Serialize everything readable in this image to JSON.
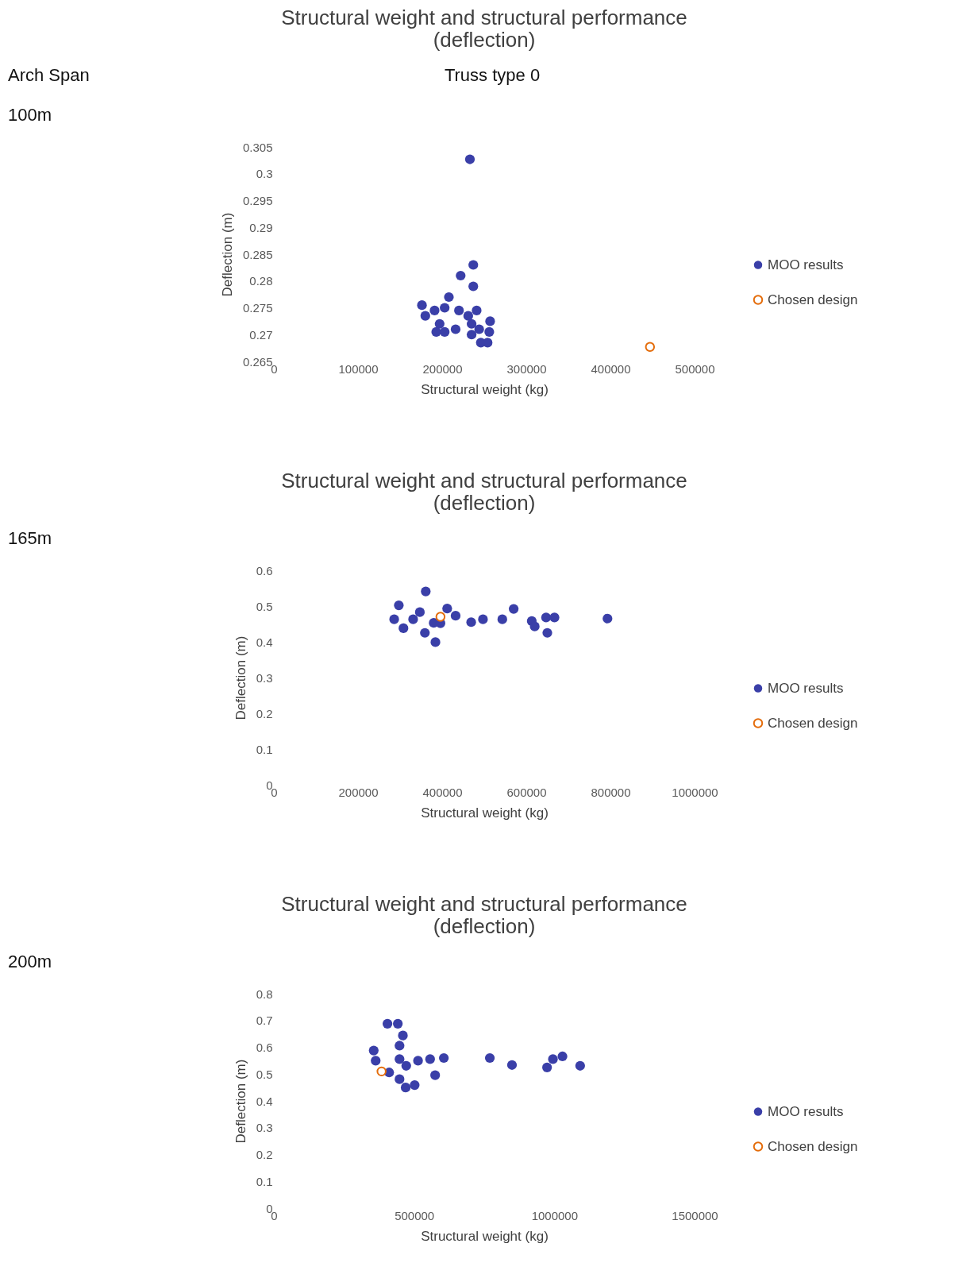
{
  "chart_data": [
    {
      "type": "scatter",
      "title": [
        "Structural weight and structural performance",
        "(deflection)"
      ],
      "xlabel": "Structural weight (kg)",
      "ylabel": "Deflection (m)",
      "annotations": [
        "Arch Span",
        "Truss type 0",
        "100m"
      ],
      "xlim": [
        0,
        500000
      ],
      "xticks": [
        0,
        100000,
        200000,
        300000,
        400000,
        500000
      ],
      "ylim": [
        0.265,
        0.305
      ],
      "yticks": [
        0.265,
        0.27,
        0.275,
        0.28,
        0.285,
        0.29,
        0.295,
        0.3,
        0.305
      ],
      "grid": false,
      "legend": "right",
      "marker": "circle",
      "series": [
        {
          "name": "MOO results",
          "color": "#3a3fa8",
          "x": [
            233000,
            237000,
            222000,
            237000,
            176000,
            180000,
            191000,
            208000,
            203000,
            197000,
            193000,
            203000,
            216000,
            220000,
            235000,
            241000,
            235000,
            246000,
            254000,
            256000,
            257000,
            231000,
            244000
          ],
          "values": [
            0.3027,
            0.283,
            0.281,
            0.279,
            0.2755,
            0.2735,
            0.2745,
            0.277,
            0.275,
            0.272,
            0.2705,
            0.2705,
            0.271,
            0.2745,
            0.272,
            0.2745,
            0.27,
            0.2685,
            0.2685,
            0.2705,
            0.2725,
            0.2735,
            0.271
          ]
        },
        {
          "name": "Chosen design",
          "color": "#e46c0a",
          "x": [
            447000
          ],
          "values": [
            0.2677
          ]
        }
      ]
    },
    {
      "type": "scatter",
      "title": [
        "Structural weight and structural performance",
        "(deflection)"
      ],
      "xlabel": "Structural weight (kg)",
      "ylabel": "Deflection (m)",
      "annotations": [
        "165m"
      ],
      "xlim": [
        0,
        1000000
      ],
      "xticks": [
        0,
        200000,
        400000,
        600000,
        800000,
        1000000
      ],
      "ylim": [
        0,
        0.6
      ],
      "yticks": [
        0,
        0.1,
        0.2,
        0.3,
        0.4,
        0.5,
        0.6
      ],
      "grid": false,
      "legend": "right",
      "marker": "circle",
      "series": [
        {
          "name": "MOO results",
          "color": "#3a3fa8",
          "x": [
            361000,
            297000,
            286000,
            308000,
            331000,
            347000,
            359000,
            380000,
            384000,
            412000,
            432000,
            469000,
            497000,
            543000,
            570000,
            613000,
            620000,
            647000,
            650000,
            667000,
            793000,
            396000
          ],
          "values": [
            0.541,
            0.502,
            0.463,
            0.438,
            0.463,
            0.483,
            0.425,
            0.453,
            0.399,
            0.493,
            0.473,
            0.455,
            0.463,
            0.463,
            0.492,
            0.458,
            0.443,
            0.468,
            0.425,
            0.468,
            0.465,
            0.452
          ]
        },
        {
          "name": "Chosen design",
          "color": "#e46c0a",
          "x": [
            396000
          ],
          "values": [
            0.47
          ]
        }
      ]
    },
    {
      "type": "scatter",
      "title": [
        "Structural weight and structural performance",
        "(deflection)"
      ],
      "xlabel": "Structural weight (kg)",
      "ylabel": "Deflection (m)",
      "annotations": [
        "200m"
      ],
      "xlim": [
        0,
        1500000
      ],
      "xticks": [
        0,
        500000,
        1000000,
        1500000
      ],
      "ylim": [
        0,
        0.8
      ],
      "yticks": [
        0,
        0.1,
        0.2,
        0.3,
        0.4,
        0.5,
        0.6,
        0.7,
        0.8
      ],
      "grid": false,
      "legend": "right",
      "marker": "circle",
      "series": [
        {
          "name": "MOO results",
          "color": "#3a3fa8",
          "x": [
            405000,
            442000,
            460000,
            448000,
            356000,
            363000,
            448000,
            472000,
            448000,
            470000,
            502000,
            514000,
            557000,
            606000,
            575000,
            770000,
            849000,
            974000,
            995000,
            1029000,
            1092000,
            411000
          ],
          "values": [
            0.688,
            0.688,
            0.644,
            0.606,
            0.588,
            0.55,
            0.556,
            0.531,
            0.481,
            0.45,
            0.459,
            0.55,
            0.556,
            0.56,
            0.496,
            0.56,
            0.534,
            0.525,
            0.556,
            0.566,
            0.531,
            0.506
          ]
        },
        {
          "name": "Chosen design",
          "color": "#e46c0a",
          "x": [
            384000
          ],
          "values": [
            0.51
          ]
        }
      ]
    }
  ]
}
